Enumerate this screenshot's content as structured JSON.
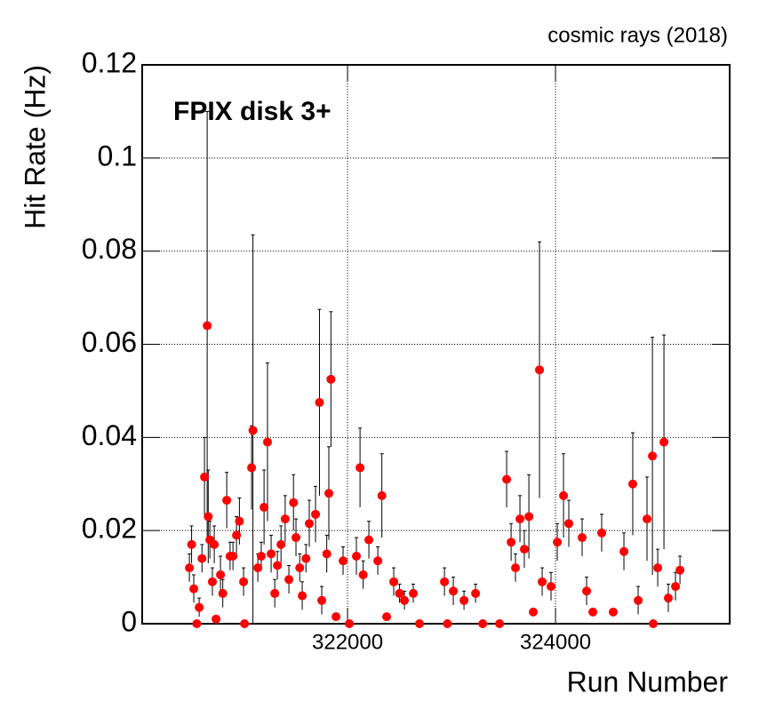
{
  "chart_data": {
    "type": "scatter",
    "title": "FPIX disk 3+",
    "subtitle": "cosmic rays (2018)",
    "x_label": "Run Number",
    "y_label": "Hit Rate (Hz)",
    "color": "#ff0000",
    "error_color": "#000000",
    "grid": true,
    "xlim": [
      320025,
      325675
    ],
    "ylim": [
      0,
      0.12
    ],
    "xticks": [
      322000,
      324000
    ],
    "yticks": [
      0,
      0.02,
      0.04,
      0.06,
      0.08,
      0.1,
      0.12
    ],
    "x": [
      320479,
      320500,
      320521,
      320550,
      320573,
      320600,
      320624,
      320650,
      320660,
      320676,
      320700,
      320718,
      320735,
      320778,
      320800,
      320838,
      320870,
      320898,
      320932,
      320960,
      321000,
      321009,
      321077,
      321090,
      321137,
      321170,
      321197,
      321230,
      321265,
      321300,
      321325,
      321360,
      321400,
      321436,
      321480,
      321504,
      321540,
      321564,
      321600,
      321632,
      321692,
      321730,
      321752,
      321800,
      321820,
      321840,
      321889,
      321957,
      322017,
      322085,
      322120,
      322150,
      322205,
      322291,
      322330,
      322376,
      322444,
      322500,
      322547,
      322632,
      322692,
      322932,
      322960,
      323017,
      323120,
      323231,
      323300,
      323462,
      323530,
      323573,
      323615,
      323658,
      323700,
      323744,
      323786,
      323846,
      323872,
      323957,
      324017,
      324077,
      324128,
      324256,
      324299,
      324359,
      324444,
      324555,
      324658,
      324743,
      324795,
      324880,
      324932,
      324940,
      324983,
      325043,
      325085,
      325154,
      325197
    ],
    "values": [
      0.012,
      0.017,
      0.0075,
      0,
      0.0035,
      0.014,
      0.0315,
      0.064,
      0.023,
      0.018,
      0.009,
      0.017,
      0.001,
      0.0105,
      0.0065,
      0.0265,
      0.0145,
      0.0145,
      0.019,
      0.022,
      0.009,
      0,
      0.0335,
      0.0415,
      0.012,
      0.0145,
      0.025,
      0.039,
      0.015,
      0.0065,
      0.0125,
      0.017,
      0.0225,
      0.0095,
      0.026,
      0.0185,
      0.012,
      0.006,
      0.014,
      0.0215,
      0.0235,
      0.0475,
      0.005,
      0.015,
      0.028,
      0.0525,
      0.0015,
      0.0135,
      0,
      0.0145,
      0.0335,
      0.0105,
      0.018,
      0.0135,
      0.0275,
      0.0015,
      0.009,
      0.0065,
      0.005,
      0.0065,
      0,
      0.009,
      0,
      0.007,
      0.005,
      0.0065,
      0,
      0,
      0.031,
      0.0175,
      0.012,
      0.0225,
      0.016,
      0.023,
      0.0025,
      0.0545,
      0.009,
      0.008,
      0.0175,
      0.0275,
      0.0215,
      0.0185,
      0.007,
      0.0025,
      0.0195,
      0.0025,
      0.0155,
      0.03,
      0.005,
      0.0225,
      0.036,
      0,
      0.012,
      0.039,
      0.0055,
      0.008,
      0.0115
    ],
    "errors": [
      0.003,
      0.004,
      0.003,
      0,
      0.002,
      0.003,
      0.0085,
      0.046,
      0.01,
      0.004,
      0.003,
      0.004,
      0,
      0.004,
      0.003,
      0.006,
      0.003,
      0.003,
      0.004,
      0.005,
      0.003,
      0,
      0.009,
      0.042,
      0.003,
      0.003,
      0.008,
      0.017,
      0.004,
      0.003,
      0.003,
      0.004,
      0.005,
      0.003,
      0.006,
      0.004,
      0.003,
      0.003,
      0.003,
      0.005,
      0.006,
      0.02,
      0.003,
      0.004,
      0.01,
      0.0145,
      0,
      0.003,
      0,
      0.004,
      0.0085,
      0.003,
      0.004,
      0.003,
      0.009,
      0,
      0.003,
      0.002,
      0.002,
      0.002,
      0,
      0.003,
      0,
      0.003,
      0.002,
      0.002,
      0,
      0,
      0.006,
      0.004,
      0.003,
      0.005,
      0.004,
      0.009,
      0,
      0.0275,
      0.003,
      0.003,
      0.004,
      0.009,
      0.005,
      0.004,
      0.003,
      0,
      0.004,
      0,
      0.004,
      0.011,
      0.003,
      0.009,
      0.0255,
      0,
      0.004,
      0.023,
      0.003,
      0.003,
      0.003
    ]
  }
}
